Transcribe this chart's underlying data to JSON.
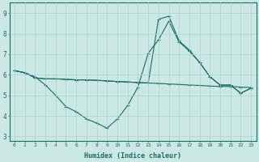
{
  "xlabel": "Humidex (Indice chaleur)",
  "xlim": [
    -0.5,
    23.5
  ],
  "ylim": [
    2.8,
    9.5
  ],
  "xticks": [
    0,
    1,
    2,
    3,
    4,
    5,
    6,
    7,
    8,
    9,
    10,
    11,
    12,
    13,
    14,
    15,
    16,
    17,
    18,
    19,
    20,
    21,
    22,
    23
  ],
  "yticks": [
    3,
    4,
    5,
    6,
    7,
    8,
    9
  ],
  "bg_color": "#cce8e4",
  "line_color": "#1a6b6b",
  "grid_color": "#aad4d0",
  "line1_x": [
    0,
    1,
    2,
    3,
    4,
    5,
    6,
    7,
    8,
    9,
    10,
    11,
    12,
    13,
    14,
    15,
    16,
    17,
    18,
    19,
    20,
    21,
    22,
    23
  ],
  "line1_y": [
    6.2,
    6.1,
    5.9,
    5.5,
    5.0,
    4.45,
    4.2,
    3.85,
    3.65,
    3.4,
    3.85,
    4.5,
    5.4,
    7.05,
    7.7,
    8.6,
    7.6,
    7.15,
    6.6,
    5.9,
    5.5,
    5.5,
    5.1,
    5.35
  ],
  "line2_x": [
    0,
    1,
    2,
    3,
    4,
    5,
    6,
    7,
    8,
    9,
    10,
    11,
    12,
    13,
    14,
    15,
    16,
    17,
    18,
    19,
    20,
    21,
    22,
    23
  ],
  "line2_y": [
    6.2,
    6.1,
    5.85,
    5.8,
    5.8,
    5.78,
    5.75,
    5.75,
    5.73,
    5.7,
    5.67,
    5.65,
    5.62,
    5.6,
    5.58,
    5.55,
    5.53,
    5.5,
    5.48,
    5.45,
    5.43,
    5.43,
    5.4,
    5.38
  ],
  "line3_x": [
    0,
    1,
    2,
    3,
    4,
    5,
    6,
    7,
    8,
    9,
    10,
    11,
    12,
    13,
    14,
    15,
    16,
    17,
    18,
    19,
    20,
    21,
    22,
    23
  ],
  "line3_y": [
    6.2,
    6.1,
    5.85,
    5.8,
    5.8,
    5.78,
    5.75,
    5.75,
    5.73,
    5.7,
    5.67,
    5.65,
    5.62,
    5.6,
    8.7,
    8.85,
    7.65,
    7.2,
    6.6,
    5.9,
    5.5,
    5.5,
    5.1,
    5.35
  ],
  "xtick_fontsize": 4.5,
  "ytick_fontsize": 5.5,
  "xlabel_fontsize": 6.0
}
